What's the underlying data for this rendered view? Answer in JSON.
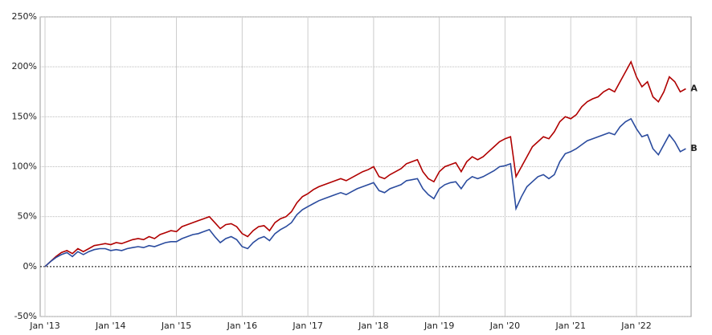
{
  "chart_data": {
    "type": "line",
    "categories": [
      "Jan '13",
      null,
      null,
      null,
      null,
      null,
      null,
      null,
      null,
      null,
      null,
      null,
      "Jan '14",
      null,
      null,
      null,
      null,
      null,
      null,
      null,
      null,
      null,
      null,
      null,
      "Jan '15",
      null,
      null,
      null,
      null,
      null,
      null,
      null,
      null,
      null,
      null,
      null,
      "Jan '16",
      null,
      null,
      null,
      null,
      null,
      null,
      null,
      null,
      null,
      null,
      null,
      "Jan '17",
      null,
      null,
      null,
      null,
      null,
      null,
      null,
      null,
      null,
      null,
      null,
      "Jan '18",
      null,
      null,
      null,
      null,
      null,
      null,
      null,
      null,
      null,
      null,
      null,
      "Jan '19",
      null,
      null,
      null,
      null,
      null,
      null,
      null,
      null,
      null,
      null,
      null,
      "Jan '20",
      null,
      null,
      null,
      null,
      null,
      null,
      null,
      null,
      null,
      null,
      null,
      "Jan '21",
      null,
      null,
      null,
      null,
      null,
      null,
      null,
      null,
      null,
      null,
      null,
      "Jan '22",
      null,
      null,
      null,
      null,
      null,
      null,
      null,
      null,
      null
    ],
    "series": [
      {
        "name": "A",
        "color": "#b00000",
        "values": [
          0,
          5,
          10,
          14,
          16,
          13,
          18,
          15,
          18,
          21,
          22,
          23,
          22,
          24,
          23,
          25,
          27,
          28,
          27,
          30,
          28,
          32,
          34,
          36,
          35,
          40,
          42,
          44,
          46,
          48,
          50,
          44,
          38,
          42,
          43,
          40,
          33,
          30,
          36,
          40,
          41,
          36,
          44,
          48,
          50,
          55,
          64,
          70,
          73,
          77,
          80,
          82,
          84,
          86,
          88,
          86,
          89,
          92,
          95,
          97,
          100,
          90,
          88,
          92,
          95,
          98,
          103,
          105,
          107,
          95,
          88,
          85,
          95,
          100,
          102,
          104,
          95,
          105,
          110,
          107,
          110,
          115,
          120,
          125,
          128,
          130,
          90,
          100,
          110,
          120,
          125,
          130,
          128,
          135,
          145,
          150,
          148,
          152,
          160,
          165,
          168,
          170,
          175,
          178,
          175,
          185,
          195,
          205,
          190,
          180,
          185,
          170,
          165,
          175,
          190,
          185,
          175,
          178
        ]
      },
      {
        "name": "B",
        "color": "#2a4b9e",
        "values": [
          0,
          5,
          9,
          12,
          14,
          10,
          15,
          12,
          15,
          17,
          18,
          18,
          16,
          17,
          16,
          18,
          19,
          20,
          19,
          21,
          20,
          22,
          24,
          25,
          25,
          28,
          30,
          32,
          33,
          35,
          37,
          30,
          24,
          28,
          30,
          27,
          20,
          18,
          24,
          28,
          30,
          26,
          33,
          37,
          40,
          44,
          52,
          57,
          60,
          63,
          66,
          68,
          70,
          72,
          74,
          72,
          75,
          78,
          80,
          82,
          84,
          76,
          74,
          78,
          80,
          82,
          86,
          87,
          88,
          78,
          72,
          68,
          78,
          82,
          84,
          85,
          78,
          86,
          90,
          88,
          90,
          93,
          96,
          100,
          101,
          103,
          58,
          70,
          80,
          85,
          90,
          92,
          88,
          92,
          105,
          113,
          115,
          118,
          122,
          126,
          128,
          130,
          132,
          134,
          132,
          140,
          145,
          148,
          138,
          130,
          132,
          118,
          112,
          122,
          132,
          125,
          115,
          118
        ]
      }
    ],
    "ylim": [
      -50,
      250
    ],
    "yticks": [
      {
        "value": -50,
        "label": "-50%"
      },
      {
        "value": 0,
        "label": "0%"
      },
      {
        "value": 50,
        "label": "50%"
      },
      {
        "value": 100,
        "label": "100%"
      },
      {
        "value": 150,
        "label": "150%"
      },
      {
        "value": 200,
        "label": "200%"
      },
      {
        "value": 250,
        "label": "250%"
      }
    ],
    "grid": true
  }
}
